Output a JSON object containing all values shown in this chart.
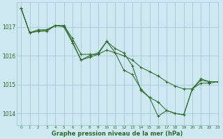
{
  "title": "Graphe pression niveau de la mer (hPa)",
  "background_color": "#cde8f0",
  "grid_color": "#aaccd8",
  "line_color": "#2d6b2d",
  "marker": "+",
  "xlim": [
    -0.5,
    23
  ],
  "ylim": [
    1013.6,
    1017.85
  ],
  "xticks": [
    0,
    1,
    2,
    3,
    4,
    5,
    6,
    7,
    8,
    9,
    10,
    11,
    12,
    13,
    14,
    15,
    16,
    17,
    18,
    19,
    20,
    21,
    22,
    23
  ],
  "yticks": [
    1014,
    1015,
    1016,
    1017
  ],
  "series": [
    [
      1017.65,
      1016.8,
      1016.85,
      1016.9,
      1017.05,
      1017.05,
      1016.6,
      1016.05,
      1016.05,
      1016.05,
      1016.2,
      1016.1,
      1016.0,
      1015.85,
      1015.6,
      1015.45,
      1015.3,
      1015.1,
      1014.95,
      1014.85,
      1014.85,
      1015.2,
      1015.1,
      null
    ],
    [
      1017.65,
      1016.8,
      1016.9,
      1016.9,
      1017.05,
      1017.05,
      1016.5,
      1015.85,
      1016.0,
      1016.1,
      1016.5,
      1016.25,
      1016.1,
      1015.65,
      1014.8,
      1014.55,
      1014.4,
      1014.1,
      1014.0,
      1013.95,
      1014.85,
      1015.15,
      1015.1,
      1015.1
    ],
    [
      1017.65,
      1016.8,
      1016.85,
      1016.85,
      1017.05,
      1017.0,
      1016.45,
      1015.85,
      1015.95,
      1016.05,
      1016.5,
      1016.1,
      1015.5,
      1015.35,
      1014.85,
      1014.55,
      1013.9,
      1014.1,
      1014.0,
      1013.95,
      1014.85,
      1015.05,
      1015.05,
      1015.1
    ]
  ]
}
